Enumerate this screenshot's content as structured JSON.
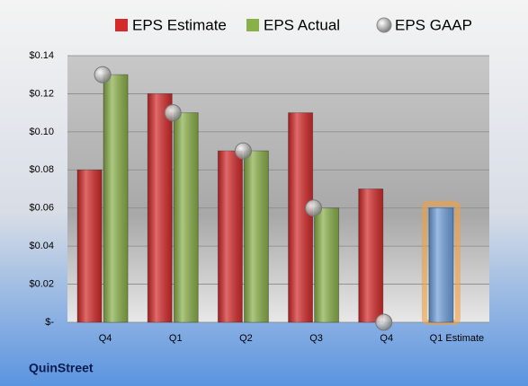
{
  "chart_data": {
    "type": "bar",
    "company": "QuinStreet",
    "categories": [
      "Q4",
      "Q1",
      "Q2",
      "Q3",
      "Q4",
      "Q1 Estimate"
    ],
    "series": [
      {
        "name": "EPS Estimate",
        "color": "#d42a2a",
        "values": [
          0.08,
          0.12,
          0.09,
          0.11,
          0.07,
          null
        ]
      },
      {
        "name": "EPS Actual",
        "color": "#8ab04a",
        "values": [
          0.13,
          0.11,
          0.09,
          0.06,
          null,
          null
        ]
      },
      {
        "name": "EPS GAAP",
        "color": "#a0a0a0",
        "mark": "circle",
        "values": [
          0.13,
          0.11,
          0.09,
          0.06,
          0,
          null
        ]
      },
      {
        "color": "#6fa0dc",
        "values": [
          null,
          null,
          null,
          null,
          null,
          0.06
        ]
      }
    ],
    "ylim": [
      0,
      0.14
    ],
    "yticks": [
      {
        "value": 0,
        "label": "$-"
      },
      {
        "value": 0.02,
        "label": "$0.02"
      },
      {
        "value": 0.04,
        "label": "$0.04"
      },
      {
        "value": 0.06,
        "label": "$0.06"
      },
      {
        "value": 0.08,
        "label": "$0.08"
      },
      {
        "value": 0.1,
        "label": "$0.10"
      },
      {
        "value": 0.12,
        "label": "$0.12"
      },
      {
        "value": 0.14,
        "label": "$0.14"
      }
    ],
    "grid": true
  }
}
